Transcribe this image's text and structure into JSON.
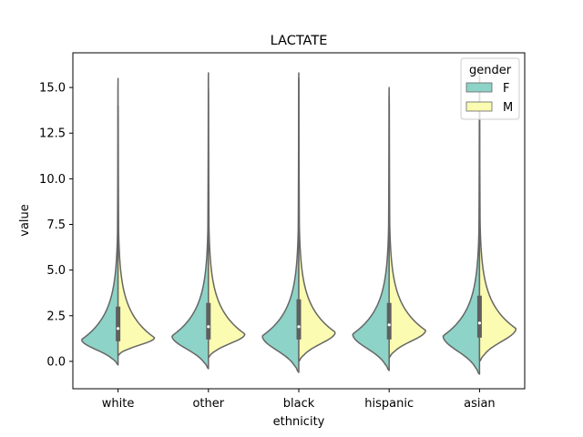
{
  "chart_data": {
    "type": "violin",
    "title": "LACTATE",
    "xlabel": "ethnicity",
    "ylabel": "value",
    "ylim": [
      -1.5,
      16.9
    ],
    "yticks": [
      0.0,
      2.5,
      5.0,
      7.5,
      10.0,
      12.5,
      15.0
    ],
    "ytick_labels": [
      "0.0",
      "2.5",
      "5.0",
      "7.5",
      "10.0",
      "12.5",
      "15.0"
    ],
    "categories": [
      "white",
      "other",
      "black",
      "hispanic",
      "asian"
    ],
    "split": true,
    "legend": {
      "title": "gender",
      "position": "top-right",
      "entries": [
        {
          "label": "F",
          "color": "#8dd3c7"
        },
        {
          "label": "M",
          "color": "#fbfbb1"
        }
      ]
    },
    "series": [
      {
        "name": "F",
        "color": "#8dd3c7",
        "violins": [
          {
            "min": -0.2,
            "max": 15.5,
            "mode": 1.2,
            "q1": 1.1,
            "median": 1.8,
            "q3": 3.0
          },
          {
            "min": -0.4,
            "max": 15.8,
            "mode": 1.4,
            "q1": 1.2,
            "median": 1.9,
            "q3": 3.2
          },
          {
            "min": -0.6,
            "max": 15.8,
            "mode": 1.4,
            "q1": 1.2,
            "median": 1.9,
            "q3": 3.4
          },
          {
            "min": -0.5,
            "max": 15.0,
            "mode": 1.5,
            "q1": 1.2,
            "median": 2.0,
            "q3": 3.2
          },
          {
            "min": -0.7,
            "max": 15.6,
            "mode": 1.4,
            "q1": 1.3,
            "median": 2.1,
            "q3": 3.6
          }
        ]
      },
      {
        "name": "M",
        "color": "#fbfbb1",
        "violins": [
          {
            "min": 0.3,
            "max": 14.0,
            "mode": 1.3
          },
          {
            "min": 0.2,
            "max": 15.0,
            "mode": 1.5
          },
          {
            "min": 0.0,
            "max": 15.5,
            "mode": 1.6
          },
          {
            "min": 0.2,
            "max": 14.5,
            "mode": 1.7
          },
          {
            "min": 0.0,
            "max": 15.8,
            "mode": 1.8
          }
        ]
      }
    ]
  }
}
